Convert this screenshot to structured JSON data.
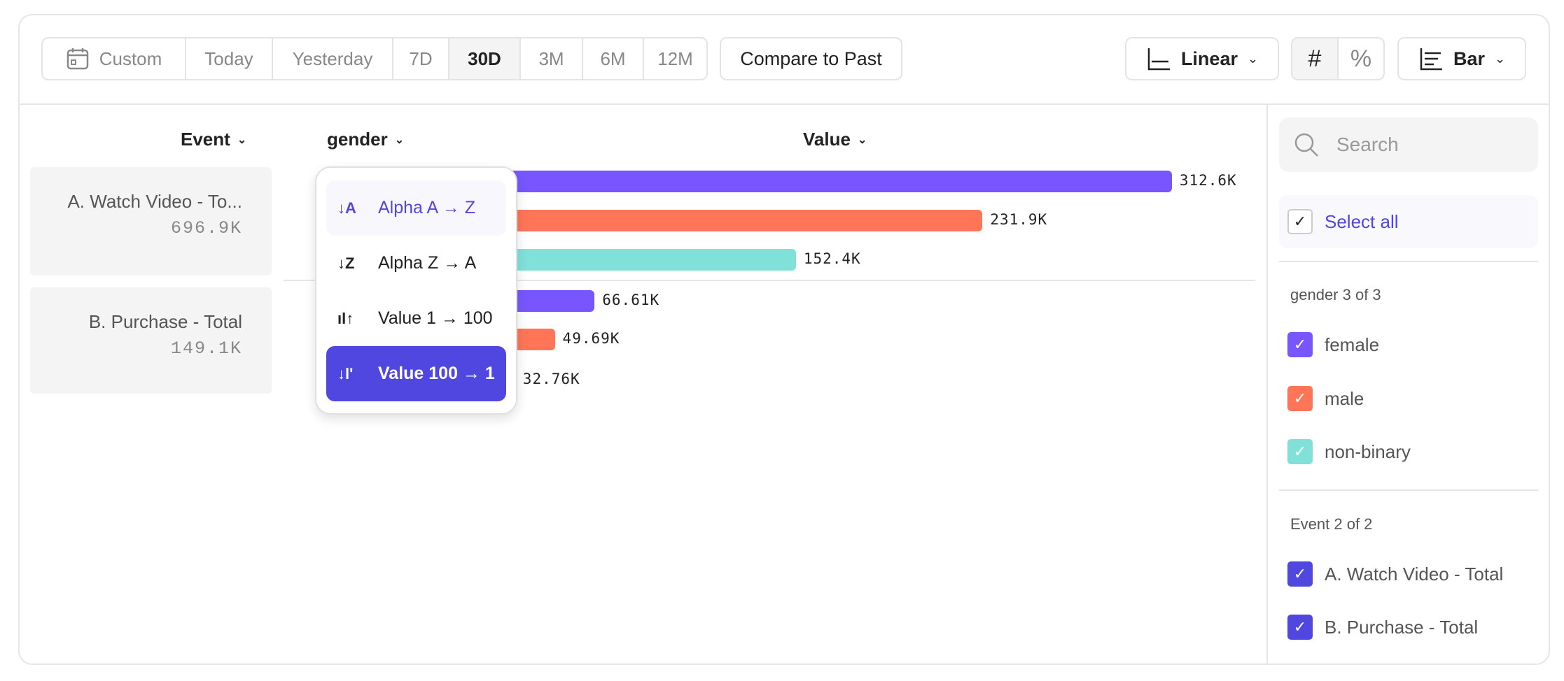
{
  "toolbar": {
    "date_ranges": [
      "Custom",
      "Today",
      "Yesterday",
      "7D",
      "30D",
      "3M",
      "6M",
      "12M"
    ],
    "active_range": "30D",
    "compare": "Compare to Past",
    "scale": "Linear",
    "number_mode": "#",
    "percent_mode": "%",
    "chart_type": "Bar"
  },
  "headers": {
    "event": "Event",
    "gender": "gender",
    "value": "Value"
  },
  "events": [
    {
      "name": "A. Watch Video - To...",
      "total": "696.9K"
    },
    {
      "name": "B. Purchase - Total",
      "total": "149.1K"
    }
  ],
  "colors": {
    "female": "#7856ff",
    "male": "#ff7557",
    "non-binary": "#80e1d9",
    "accent": "#5046e0"
  },
  "chart_data": {
    "type": "bar",
    "orientation": "horizontal",
    "groups": [
      {
        "event": "A. Watch Video - Total",
        "bars": [
          {
            "gender": "female",
            "value": 312.6,
            "label": "312.6K"
          },
          {
            "gender": "male",
            "value": 231.9,
            "label": "231.9K"
          },
          {
            "gender": "non-binary",
            "value": 152.4,
            "label": "152.4K"
          }
        ]
      },
      {
        "event": "B. Purchase - Total",
        "bars": [
          {
            "gender": "female",
            "value": 66.61,
            "label": "66.61K"
          },
          {
            "gender": "male",
            "value": 49.69,
            "label": "49.69K"
          },
          {
            "gender": "non-binary",
            "value": 32.76,
            "label": "32.76K"
          }
        ]
      }
    ]
  },
  "sort_menu": {
    "items": [
      {
        "icon": "↓A",
        "label": "Alpha A → Z"
      },
      {
        "icon": "↓Z",
        "label": "Alpha Z → A"
      },
      {
        "icon": "ıl↑",
        "label": "Value 1 → 100"
      },
      {
        "icon": "↓l'",
        "label": "Value 100 → 1"
      }
    ],
    "selected": "Value 100 → 1",
    "hovered": "Alpha A → Z"
  },
  "filter": {
    "search_placeholder": "Search",
    "select_all": "Select all",
    "gender_title": "gender 3 of 3",
    "genders": [
      "female",
      "male",
      "non-binary"
    ],
    "event_title": "Event 2 of 2",
    "events": [
      "A. Watch Video - Total",
      "B. Purchase - Total"
    ]
  }
}
